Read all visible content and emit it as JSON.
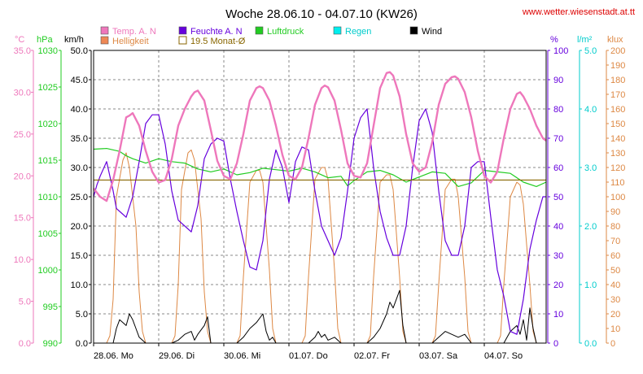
{
  "colors": {
    "temp": "#ee77bb",
    "humidity": "#6600dd",
    "pressure": "#22cc22",
    "rain": "#00cccc",
    "wind": "#000000",
    "brightness": "#dd8844",
    "monthly": "#886600",
    "grid": "#888888",
    "url": "#dd0000"
  },
  "header": {
    "title": "Woche 28.06.10 - 04.07.10 (KW26)",
    "url": "www.wetter.wiesenstadt.at.tt"
  },
  "chart_data": {
    "type": "line",
    "title": "Woche 28.06.10 - 04.07.10 (KW26)",
    "legend": [
      {
        "key": "temp",
        "label": "Temp. A. N"
      },
      {
        "key": "humidity",
        "label": "Feuchte A. N"
      },
      {
        "key": "pressure",
        "label": "Luftdruck"
      },
      {
        "key": "rain",
        "label": "Regen"
      },
      {
        "key": "wind",
        "label": "Wind"
      },
      {
        "key": "brightness",
        "label": "Helligkeit"
      },
      {
        "key": "monthly",
        "label": "19.5 Monat-Ø"
      }
    ],
    "axes": {
      "temp": {
        "unit": "°C",
        "min": 0,
        "max": 35,
        "ticks": [
          "0.0",
          "5.0",
          "10.0",
          "15.0",
          "20.0",
          "25.0",
          "30.0",
          "35.0"
        ]
      },
      "pressure": {
        "unit": "hPa",
        "min": 990,
        "max": 1030,
        "ticks": [
          "990",
          "995",
          "1000",
          "1005",
          "1010",
          "1015",
          "1020",
          "1025",
          "1030"
        ]
      },
      "wind": {
        "unit": "km/h",
        "min": 0,
        "max": 50,
        "ticks": [
          "0.0",
          "5.0",
          "10.0",
          "15.0",
          "20.0",
          "25.0",
          "30.0",
          "35.0",
          "40.0",
          "45.0",
          "50.0"
        ]
      },
      "humidity": {
        "unit": "%",
        "min": 0,
        "max": 100,
        "ticks": [
          "0",
          "10",
          "20",
          "30",
          "40",
          "50",
          "60",
          "70",
          "80",
          "90",
          "100"
        ]
      },
      "rain": {
        "unit": "l/m²",
        "min": 0,
        "max": 5,
        "ticks": [
          "0.0",
          "1.0",
          "2.0",
          "3.0",
          "4.0",
          "5.0"
        ]
      },
      "brightness": {
        "unit": "klux",
        "min": 0,
        "max": 200,
        "ticks": [
          "0",
          "10",
          "20",
          "30",
          "40",
          "50",
          "60",
          "70",
          "80",
          "90",
          "100",
          "110",
          "120",
          "130",
          "140",
          "150",
          "160",
          "170",
          "180",
          "190",
          "200"
        ]
      }
    },
    "x_labels": [
      "28.06.  Mo",
      "29.06.  Di",
      "30.06.  Mi",
      "01.07.  Do",
      "02.07.  Fr",
      "03.07.  Sa",
      "04.07.  So"
    ],
    "x_range_days": [
      0,
      6.95
    ],
    "monthly_avg_temp": 19.5,
    "series": {
      "temp": {
        "x": [
          0,
          0.1,
          0.2,
          0.3,
          0.4,
          0.5,
          0.55,
          0.6,
          0.7,
          0.8,
          0.9,
          1.0,
          1.1,
          1.2,
          1.3,
          1.4,
          1.5,
          1.55,
          1.6,
          1.7,
          1.8,
          1.9,
          2.0,
          2.1,
          2.2,
          2.3,
          2.4,
          2.5,
          2.55,
          2.6,
          2.7,
          2.8,
          2.9,
          3.0,
          3.1,
          3.2,
          3.3,
          3.4,
          3.5,
          3.55,
          3.6,
          3.7,
          3.8,
          3.9,
          4.0,
          4.1,
          4.2,
          4.3,
          4.4,
          4.5,
          4.55,
          4.6,
          4.7,
          4.8,
          4.9,
          5.0,
          5.1,
          5.2,
          5.3,
          5.4,
          5.5,
          5.55,
          5.6,
          5.7,
          5.8,
          5.9,
          6.0,
          6.1,
          6.2,
          6.3,
          6.4,
          6.5,
          6.55,
          6.6,
          6.7,
          6.8,
          6.9,
          6.95
        ],
        "y": [
          18.5,
          17.5,
          17.0,
          19.5,
          23.0,
          27.0,
          27.2,
          27.5,
          26.0,
          23.0,
          20.5,
          19.2,
          19.5,
          22.0,
          26.0,
          28.0,
          29.5,
          30.0,
          30.2,
          29.0,
          25.5,
          21.8,
          20.0,
          19.6,
          21.5,
          25.0,
          29.0,
          30.5,
          30.7,
          30.5,
          29.0,
          26.0,
          22.5,
          20.0,
          19.6,
          21.0,
          24.5,
          28.5,
          30.5,
          30.8,
          30.6,
          29.0,
          25.5,
          21.5,
          20.0,
          19.8,
          21.5,
          26.0,
          30.5,
          32.3,
          32.4,
          32.0,
          29.5,
          25.0,
          21.5,
          20.5,
          21.0,
          24.0,
          28.5,
          31.0,
          31.8,
          31.9,
          31.6,
          30.0,
          27.0,
          23.0,
          20.0,
          19.2,
          20.5,
          24.5,
          28.0,
          29.8,
          30.0,
          29.5,
          28.0,
          26.0,
          24.5,
          24.2
        ]
      },
      "humidity": {
        "x": [
          0,
          0.05,
          0.1,
          0.2,
          0.3,
          0.35,
          0.4,
          0.5,
          0.6,
          0.7,
          0.8,
          0.9,
          1.0,
          1.1,
          1.2,
          1.3,
          1.4,
          1.5,
          1.6,
          1.7,
          1.8,
          1.9,
          2.0,
          2.1,
          2.2,
          2.3,
          2.4,
          2.5,
          2.6,
          2.7,
          2.8,
          2.9,
          3.0,
          3.1,
          3.2,
          3.3,
          3.4,
          3.5,
          3.6,
          3.7,
          3.8,
          3.9,
          4.0,
          4.1,
          4.2,
          4.3,
          4.4,
          4.5,
          4.6,
          4.7,
          4.8,
          4.9,
          5.0,
          5.1,
          5.2,
          5.3,
          5.4,
          5.5,
          5.6,
          5.7,
          5.8,
          5.9,
          6.0,
          6.1,
          6.2,
          6.3,
          6.4,
          6.5,
          6.6,
          6.7,
          6.8,
          6.9,
          6.95
        ],
        "y": [
          50,
          54,
          57,
          62,
          52,
          46,
          45,
          43,
          50,
          62,
          75,
          78,
          78,
          68,
          52,
          42,
          40,
          38,
          47,
          63,
          68,
          70,
          69,
          56,
          45,
          35,
          26,
          25,
          35,
          56,
          66,
          60,
          48,
          62,
          67,
          66,
          52,
          40,
          35,
          30,
          36,
          52,
          70,
          77,
          80,
          60,
          45,
          36,
          30,
          30,
          40,
          60,
          76,
          80,
          72,
          52,
          35,
          30,
          30,
          40,
          60,
          62,
          62,
          43,
          25,
          16,
          4,
          3,
          15,
          32,
          42,
          50,
          50
        ]
      },
      "pressure": {
        "x": [
          0,
          0.2,
          0.4,
          0.5,
          0.6,
          0.8,
          1.0,
          1.2,
          1.4,
          1.6,
          1.8,
          2.0,
          2.2,
          2.4,
          2.6,
          2.8,
          3.0,
          3.2,
          3.4,
          3.6,
          3.8,
          3.9,
          4.0,
          4.2,
          4.4,
          4.6,
          4.8,
          5.0,
          5.2,
          5.4,
          5.6,
          5.8,
          6.0,
          6.2,
          6.4,
          6.6,
          6.8,
          6.95
        ],
        "y": [
          1016.5,
          1016.6,
          1016.2,
          1015.6,
          1015.2,
          1014.6,
          1015.2,
          1014.8,
          1014.6,
          1013.8,
          1013.4,
          1013.8,
          1013.0,
          1013.3,
          1013.9,
          1013.7,
          1013.5,
          1013.9,
          1013.4,
          1012.6,
          1012.8,
          1011.5,
          1012.2,
          1013.4,
          1013.6,
          1013.0,
          1012.0,
          1012.7,
          1013.4,
          1013.2,
          1011.4,
          1011.9,
          1013.6,
          1013.4,
          1013.2,
          1012.0,
          1011.4,
          1012.0
        ]
      },
      "brightness": {
        "x": [
          0,
          0.2,
          0.25,
          0.3,
          0.35,
          0.45,
          0.5,
          0.55,
          0.65,
          0.7,
          0.75,
          0.8,
          1.2,
          1.25,
          1.3,
          1.35,
          1.45,
          1.5,
          1.55,
          1.65,
          1.7,
          1.75,
          1.8,
          2.2,
          2.25,
          2.3,
          2.4,
          2.5,
          2.55,
          2.6,
          2.7,
          2.75,
          2.8,
          3.2,
          3.25,
          3.3,
          3.4,
          3.5,
          3.55,
          3.6,
          3.7,
          3.75,
          3.8,
          4.2,
          4.25,
          4.3,
          4.4,
          4.5,
          4.55,
          4.6,
          4.7,
          4.75,
          4.8,
          5.2,
          5.25,
          5.3,
          5.4,
          5.5,
          5.55,
          5.6,
          5.7,
          5.75,
          5.8,
          6.2,
          6.25,
          6.3,
          6.4,
          6.5,
          6.55,
          6.6,
          6.7,
          6.75,
          6.8,
          6.95
        ],
        "y": [
          0,
          0,
          5,
          30,
          100,
          125,
          130,
          120,
          80,
          35,
          8,
          0,
          0,
          5,
          40,
          105,
          130,
          132,
          125,
          85,
          35,
          8,
          0,
          0,
          5,
          45,
          110,
          118,
          118,
          110,
          50,
          10,
          0,
          0,
          5,
          45,
          112,
          120,
          120,
          112,
          50,
          10,
          0,
          0,
          5,
          45,
          110,
          115,
          115,
          105,
          45,
          8,
          0,
          0,
          5,
          40,
          105,
          112,
          112,
          100,
          45,
          8,
          0,
          0,
          5,
          40,
          100,
          110,
          108,
          95,
          40,
          8,
          0,
          0
        ]
      },
      "wind": {
        "x": [
          0,
          0.3,
          0.35,
          0.4,
          0.45,
          0.5,
          0.55,
          0.6,
          0.65,
          0.7,
          0.75,
          0.8,
          0.85,
          1.2,
          1.3,
          1.4,
          1.5,
          1.55,
          1.6,
          1.7,
          1.75,
          1.8,
          2.2,
          2.3,
          2.4,
          2.5,
          2.6,
          2.65,
          2.7,
          2.75,
          2.8,
          3.3,
          3.4,
          3.45,
          3.5,
          3.55,
          3.6,
          3.7,
          3.8,
          4.2,
          4.3,
          4.4,
          4.5,
          4.55,
          4.6,
          4.7,
          4.75,
          4.8,
          5.2,
          5.3,
          5.4,
          5.5,
          5.6,
          5.7,
          5.8,
          6.3,
          6.4,
          6.5,
          6.55,
          6.6,
          6.65,
          6.7,
          6.75,
          6.8,
          6.95
        ],
        "y": [
          0,
          0,
          2.5,
          4.0,
          3.5,
          3.0,
          5.0,
          4.0,
          2.5,
          1.0,
          0.5,
          0,
          0,
          0,
          0.5,
          1.5,
          2.0,
          0.5,
          1.5,
          3.0,
          4.5,
          0,
          0,
          1.0,
          2.5,
          3.5,
          5.0,
          2.0,
          0.5,
          1.0,
          0,
          0,
          1.0,
          2.0,
          1.0,
          1.5,
          0.5,
          1.0,
          0,
          0,
          1.0,
          2.5,
          5.0,
          7.0,
          6.0,
          9.0,
          3.0,
          0,
          0,
          1.0,
          2.0,
          1.5,
          1.0,
          1.5,
          0,
          0,
          2.0,
          3.0,
          1.5,
          4.0,
          0.5,
          6.0,
          2.5,
          0,
          0
        ]
      }
    }
  }
}
